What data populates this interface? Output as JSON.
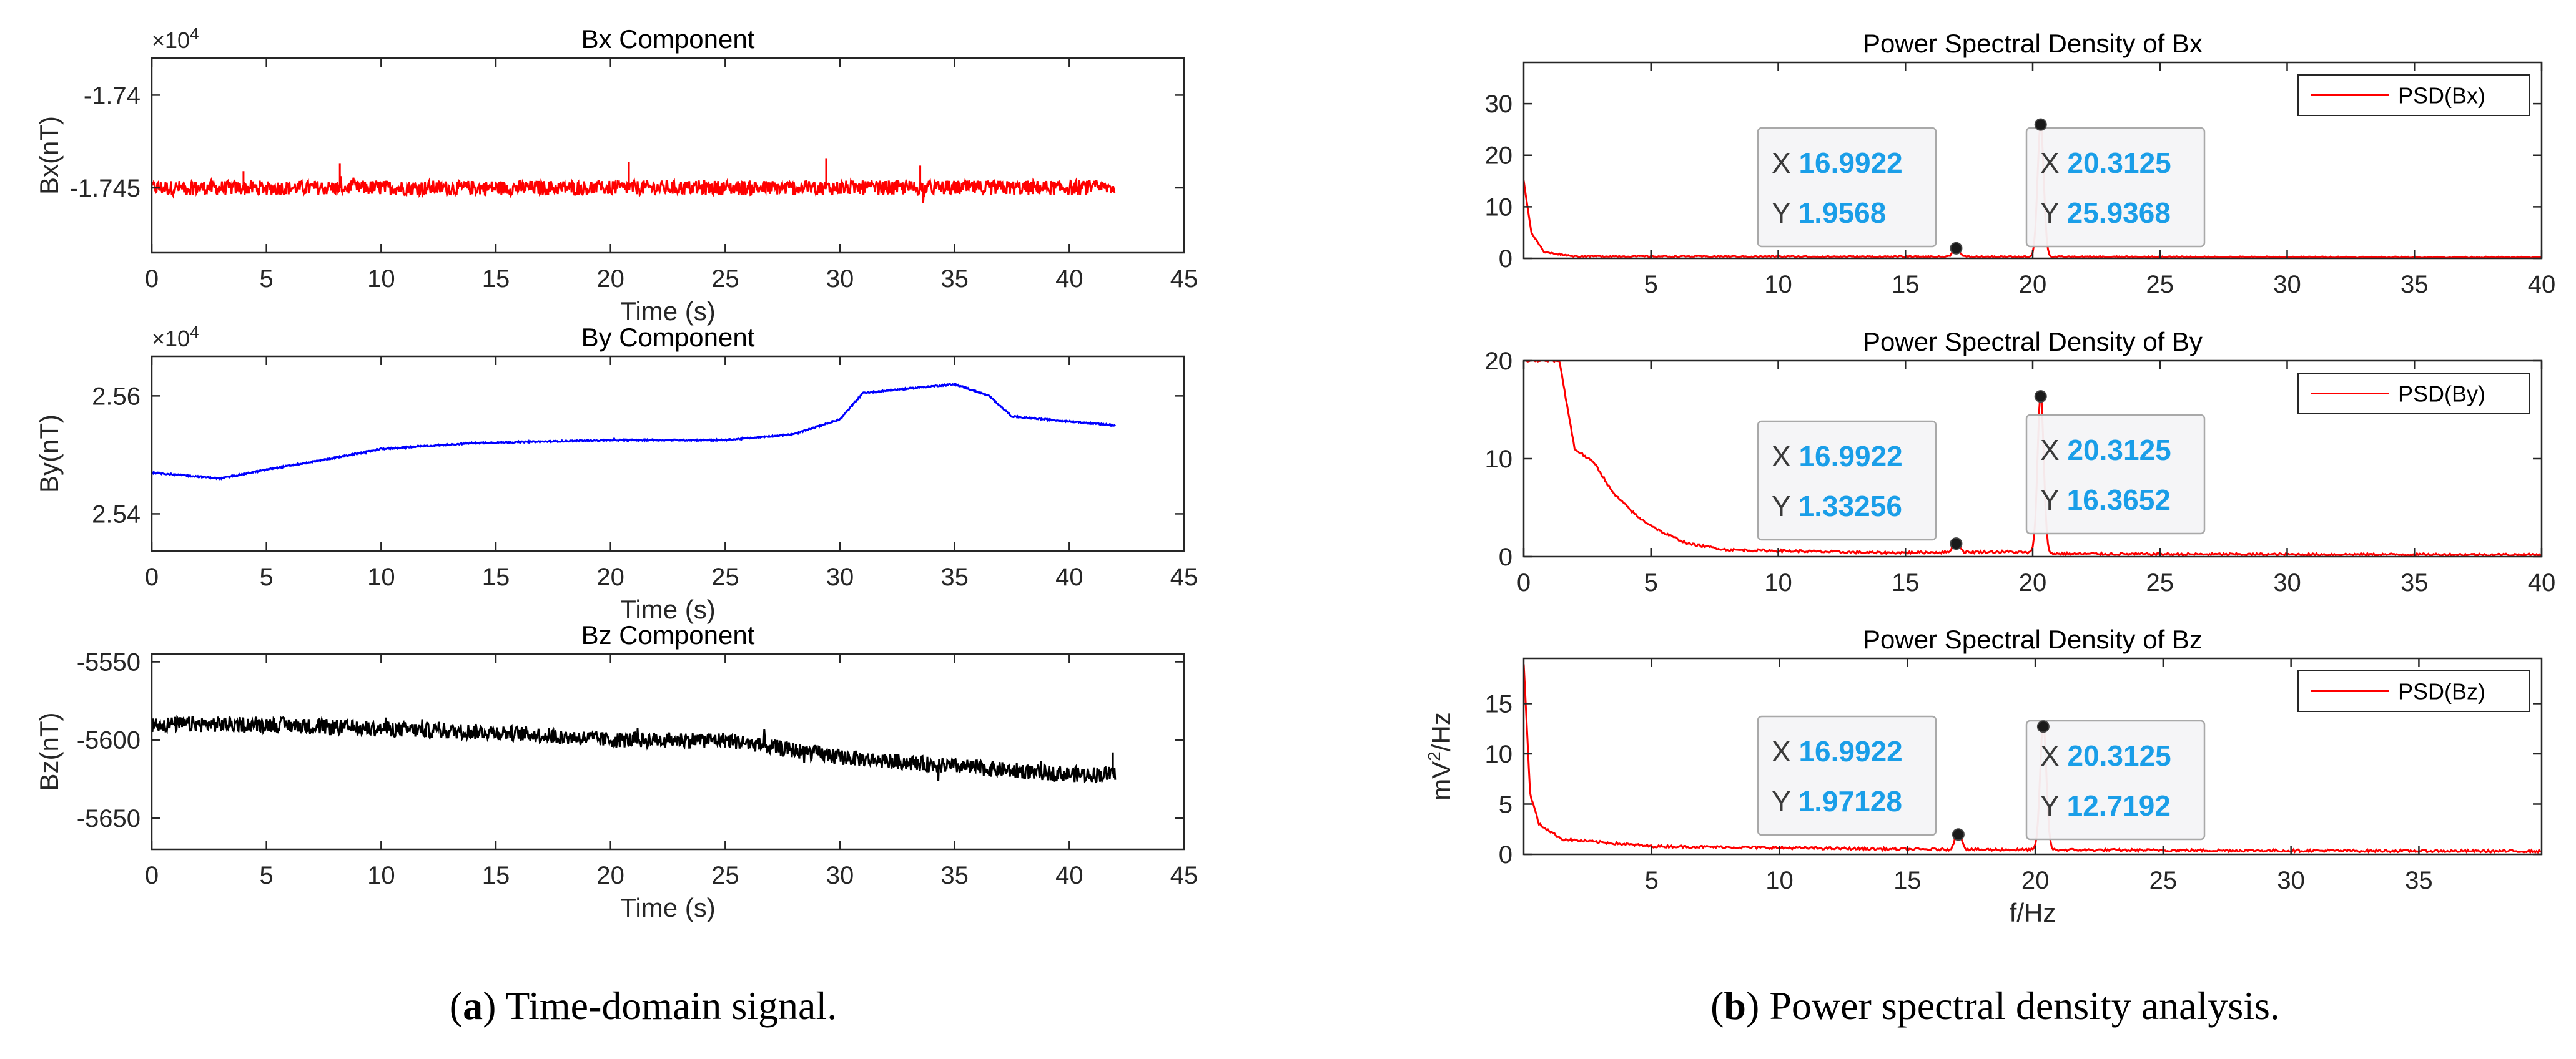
{
  "chart_data": [
    {
      "type": "line",
      "title": "Bx Component",
      "xlabel": "Time (s)",
      "ylabel": "Bx(nT)",
      "axis_exponent": "×10^4",
      "exponent_base": "×10",
      "exponent_power": "4",
      "xlim": [
        0,
        45
      ],
      "ylim": [
        -1.7485,
        -1.738
      ],
      "xticks": [
        0,
        5,
        10,
        15,
        20,
        25,
        30,
        35,
        40,
        45
      ],
      "yticks": [
        -1.745,
        -1.74
      ],
      "ytick_labels": [
        "-1.745",
        "-1.74"
      ],
      "color": "#ff0000",
      "series": [
        {
          "name": "Bx",
          "baseline": -1.745,
          "noise": 0.0004,
          "trend": [
            [
              0,
              -1.745
            ],
            [
              42,
              -1.745
            ]
          ],
          "spikes": [
            [
              8.2,
              -1.7437
            ],
            [
              20.8,
              -1.7436
            ],
            [
              29.4,
              -1.7434
            ],
            [
              33.5,
              -1.7438
            ],
            [
              4.0,
              -1.7441
            ]
          ]
        }
      ]
    },
    {
      "type": "line",
      "title": "By Component",
      "xlabel": "Time (s)",
      "ylabel": "By(nT)",
      "axis_exponent": "×10^4",
      "exponent_base": "×10",
      "exponent_power": "4",
      "xlim": [
        0,
        45
      ],
      "ylim": [
        2.5337,
        2.5667
      ],
      "xticks": [
        0,
        5,
        10,
        15,
        20,
        25,
        30,
        35,
        40,
        45
      ],
      "yticks": [
        2.54,
        2.56
      ],
      "ytick_labels": [
        "2.54",
        "2.56"
      ],
      "color": "#0000ff",
      "series": [
        {
          "name": "By",
          "noise": 0.00012,
          "trend": [
            [
              0,
              2.547
            ],
            [
              3,
              2.546
            ],
            [
              5,
              2.5475
            ],
            [
              8,
              2.5495
            ],
            [
              10,
              2.551
            ],
            [
              14,
              2.552
            ],
            [
              20,
              2.5525
            ],
            [
              25,
              2.5525
            ],
            [
              28,
              2.5535
            ],
            [
              30,
              2.556
            ],
            [
              31,
              2.5605
            ],
            [
              35,
              2.562
            ],
            [
              36.5,
              2.56
            ],
            [
              37.5,
              2.5565
            ],
            [
              42,
              2.555
            ]
          ],
          "spikes": []
        }
      ]
    },
    {
      "type": "line",
      "title": "Bz Component",
      "xlabel": "Time (s)",
      "ylabel": "Bz(nT)",
      "axis_exponent": "",
      "xlim": [
        0,
        45
      ],
      "ylim": [
        -5670,
        -5545
      ],
      "xticks": [
        0,
        5,
        10,
        15,
        20,
        25,
        30,
        35,
        40,
        45
      ],
      "yticks": [
        -5650,
        -5600,
        -5550
      ],
      "ytick_labels": [
        "-5650",
        "-5600",
        "-5550"
      ],
      "color": "#000000",
      "series": [
        {
          "name": "Bz",
          "noise": 5,
          "trend": [
            [
              0,
              -5590
            ],
            [
              5,
              -5590
            ],
            [
              10,
              -5593
            ],
            [
              15,
              -5595
            ],
            [
              20,
              -5600
            ],
            [
              25,
              -5600
            ],
            [
              30,
              -5611
            ],
            [
              35,
              -5617
            ],
            [
              40,
              -5622
            ],
            [
              42,
              -5622
            ]
          ],
          "spikes": [
            [
              41.9,
              -5608
            ]
          ]
        }
      ]
    },
    {
      "type": "line",
      "title": "Power Spectral Density of Bx",
      "xlabel": "",
      "ylabel": "",
      "xlim": [
        0,
        40
      ],
      "ylim": [
        0,
        38
      ],
      "xticks": [
        5,
        10,
        15,
        20,
        25,
        30,
        35,
        40
      ],
      "yticks": [
        0,
        10,
        20,
        30
      ],
      "ytick_labels": [
        "0",
        "10",
        "20",
        "30"
      ],
      "legend": "PSD(Bx)",
      "color": "#ff0000",
      "series": [
        {
          "name": "PSD(Bx)",
          "decay": [
            [
              0,
              15
            ],
            [
              0.3,
              5
            ],
            [
              0.8,
              1.2
            ],
            [
              2,
              0.4
            ],
            [
              40,
              0.2
            ]
          ],
          "peaks": [
            [
              16.9922,
              1.9568
            ],
            [
              20.3125,
              25.9368
            ]
          ]
        }
      ],
      "datatips": [
        {
          "x_label": "X",
          "y_label": "Y",
          "x": "16.9922",
          "y": "1.9568"
        },
        {
          "x_label": "X",
          "y_label": "Y",
          "x": "20.3125",
          "y": "25.9368"
        }
      ]
    },
    {
      "type": "line",
      "title": "Power Spectral Density of By",
      "xlabel": "",
      "ylabel": "",
      "xlim": [
        0,
        40
      ],
      "ylim": [
        0,
        20
      ],
      "xticks": [
        0,
        5,
        10,
        15,
        20,
        25,
        30,
        35,
        40
      ],
      "yticks": [
        0,
        10,
        20
      ],
      "ytick_labels": [
        "0",
        "10",
        "20"
      ],
      "legend": "PSD(By)",
      "color": "#ff0000",
      "series": [
        {
          "name": "PSD(By)",
          "decay": [
            [
              1.4,
              20
            ],
            [
              2.0,
              11
            ],
            [
              2.8,
              9.5
            ],
            [
              3.5,
              6.5
            ],
            [
              4.5,
              4
            ],
            [
              5.5,
              2.4
            ],
            [
              6.5,
              1.3
            ],
            [
              8,
              0.7
            ],
            [
              10,
              0.6
            ],
            [
              14,
              0.4
            ],
            [
              19,
              0.5
            ],
            [
              21,
              0.3
            ],
            [
              25,
              0.25
            ],
            [
              40,
              0.2
            ]
          ],
          "peaks": [
            [
              16.9922,
              1.33256
            ],
            [
              20.3125,
              16.3652
            ]
          ]
        }
      ],
      "datatips": [
        {
          "x_label": "X",
          "y_label": "Y",
          "x": "16.9922",
          "y": "1.33256"
        },
        {
          "x_label": "X",
          "y_label": "Y",
          "x": "20.3125",
          "y": "16.3652"
        }
      ]
    },
    {
      "type": "line",
      "title": "Power Spectral Density of Bz",
      "xlabel": "f/Hz",
      "ylabel": "mV²/Hz",
      "ylabel_base": "mV",
      "ylabel_sup": "2",
      "ylabel_tail": "/Hz",
      "xlim": [
        0,
        39.8
      ],
      "ylim": [
        0,
        19.5
      ],
      "xticks": [
        5,
        10,
        15,
        20,
        25,
        30,
        35
      ],
      "yticks": [
        0,
        5,
        10,
        15
      ],
      "ytick_labels": [
        "0",
        "5",
        "10",
        "15"
      ],
      "legend": "PSD(Bz)",
      "color": "#ff0000",
      "series": [
        {
          "name": "PSD(Bz)",
          "decay": [
            [
              0,
              19
            ],
            [
              0.25,
              6
            ],
            [
              0.6,
              3
            ],
            [
              1.5,
              1.5
            ],
            [
              5,
              0.8
            ],
            [
              15,
              0.5
            ],
            [
              25,
              0.4
            ],
            [
              40,
              0.3
            ]
          ],
          "peaks": [
            [
              16.9922,
              1.97128
            ],
            [
              20.3125,
              12.7192
            ]
          ]
        }
      ],
      "datatips": [
        {
          "x_label": "X",
          "y_label": "Y",
          "x": "16.9922",
          "y": "1.97128"
        },
        {
          "x_label": "X",
          "y_label": "Y",
          "x": "20.3125",
          "y": "12.7192"
        }
      ]
    }
  ],
  "captions": {
    "a": {
      "label": "a",
      "open": "(",
      "close": ")",
      "text": " Time-domain signal."
    },
    "b": {
      "label": "b",
      "open": "(",
      "close": ")",
      "text": " Power spectral density analysis."
    }
  }
}
